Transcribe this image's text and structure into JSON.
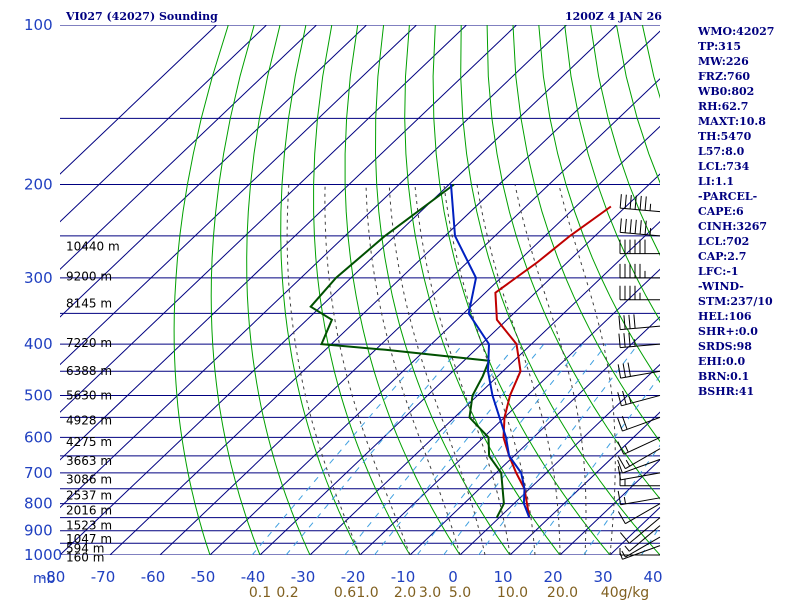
{
  "header": {
    "station": "VI027 (42027) Sounding",
    "time": "1200Z  4 JAN 26"
  },
  "indices": [
    "WMO:42027",
    "TP:315",
    "MW:226",
    "FRZ:760",
    "WB0:802",
    "RH:62.7",
    "MAXT:10.8",
    "TH:5470",
    "L57:8.0",
    "LCL:734",
    "LI:1.1",
    "-PARCEL-",
    "CAPE:6",
    "CINH:3267",
    "LCL:702",
    "CAP:2.7",
    "LFC:-1",
    "-WIND-",
    "STM:237/10",
    "HEL:106",
    "SHR+:0.0",
    "SRDS:98",
    "EHI:0.0",
    "BRN:0.1",
    "BSHR:41"
  ],
  "colors": {
    "isobar": "#000080",
    "isotherm": "#000080",
    "dry_adiabat": "#00a000",
    "moist_adiabat": "#404040",
    "mixing_ratio": "#40a0e0",
    "temperature": "#c00000",
    "dewpoint": "#005000",
    "parcel": "#0020c0",
    "wind": "#000000"
  },
  "chart_data": {
    "type": "line",
    "title": "VI027 (42027) Sounding",
    "ylabel": "mb",
    "y_scale": "log",
    "ylim": [
      1000,
      100
    ],
    "xlim": [
      -80,
      40
    ],
    "pressure_ticks": [
      100,
      200,
      300,
      400,
      500,
      600,
      700,
      800,
      900,
      1000
    ],
    "pressure_tick_labels": [
      "100",
      "200",
      "300",
      "400",
      "500",
      "600",
      "700",
      "800",
      "900",
      "1000"
    ],
    "temperature_ticks": [
      -80,
      -70,
      -60,
      -50,
      -40,
      -30,
      -20,
      -10,
      0,
      10,
      20,
      30,
      40
    ],
    "temperature_tick_labels": [
      "-80",
      "-70",
      "-60",
      "-50",
      "-40",
      "-30",
      "-20",
      "-10",
      "0",
      "10",
      "20",
      "30",
      "40"
    ],
    "mixing_ratio_labels": [
      {
        "text": "0.1",
        "temp": -40
      },
      {
        "text": "0.2",
        "temp": -34.5
      },
      {
        "text": "0.6",
        "temp": -23
      },
      {
        "text": "1.0",
        "temp": -18.5
      },
      {
        "text": "2.0",
        "temp": -11
      },
      {
        "text": "3.0",
        "temp": -6
      },
      {
        "text": "5.0",
        "temp": 0
      },
      {
        "text": "10.0",
        "temp": 10.5
      },
      {
        "text": "20.0",
        "temp": 20.5
      },
      {
        "text": "40g/kg",
        "temp": 33
      }
    ],
    "height_labels": [
      {
        "text": "10440 m",
        "p": 262
      },
      {
        "text": "9200 m",
        "p": 298
      },
      {
        "text": "8145 m",
        "p": 335
      },
      {
        "text": "7220 m",
        "p": 398
      },
      {
        "text": "6388 m",
        "p": 450
      },
      {
        "text": "5630 m",
        "p": 500
      },
      {
        "text": "4928 m",
        "p": 557
      },
      {
        "text": "4275 m",
        "p": 612
      },
      {
        "text": "3663 m",
        "p": 665
      },
      {
        "text": "3086 m",
        "p": 720
      },
      {
        "text": "2537 m",
        "p": 773
      },
      {
        "text": "2016 m",
        "p": 825
      },
      {
        "text": "1523 m",
        "p": 880
      },
      {
        "text": "1047 m",
        "p": 932
      },
      {
        "text": "594 m",
        "p": 972
      },
      {
        "text": "160 m",
        "p": 1012
      }
    ],
    "series": [
      {
        "name": "temperature",
        "points": [
          [
            850,
            6
          ],
          [
            750,
            -1
          ],
          [
            700,
            -6
          ],
          [
            650,
            -11
          ],
          [
            600,
            -16
          ],
          [
            550,
            -20
          ],
          [
            500,
            -23.5
          ],
          [
            450,
            -26.5
          ],
          [
            430,
            -29
          ],
          [
            400,
            -33
          ],
          [
            360,
            -42
          ],
          [
            320,
            -48
          ],
          [
            280,
            -46
          ],
          [
            250,
            -45
          ],
          [
            220,
            -43
          ]
        ]
      },
      {
        "name": "dewpoint",
        "points": [
          [
            850,
            -0.5
          ],
          [
            800,
            -2
          ],
          [
            700,
            -9
          ],
          [
            650,
            -15
          ],
          [
            600,
            -19
          ],
          [
            550,
            -27
          ],
          [
            500,
            -31
          ],
          [
            460,
            -33
          ],
          [
            430,
            -35
          ],
          [
            410,
            -58
          ],
          [
            400,
            -72
          ],
          [
            360,
            -75
          ],
          [
            340,
            -82
          ],
          [
            300,
            -83
          ],
          [
            250,
            -82
          ],
          [
            200,
            -79
          ]
        ]
      },
      {
        "name": "parcel",
        "points": [
          [
            850,
            6
          ],
          [
            800,
            2
          ],
          [
            750,
            -1
          ],
          [
            700,
            -5
          ],
          [
            650,
            -11
          ],
          [
            600,
            -15.5
          ],
          [
            550,
            -21
          ],
          [
            500,
            -27
          ],
          [
            450,
            -33
          ],
          [
            400,
            -38.5
          ],
          [
            350,
            -49
          ],
          [
            300,
            -55
          ],
          [
            250,
            -68
          ],
          [
            200,
            -79.6
          ]
        ]
      }
    ],
    "wind_barbs": [
      {
        "p": 1000,
        "dir": 270,
        "kt": 5
      },
      {
        "p": 960,
        "dir": 250,
        "kt": 5
      },
      {
        "p": 925,
        "dir": 240,
        "kt": 5
      },
      {
        "p": 880,
        "dir": 230,
        "kt": 5
      },
      {
        "p": 850,
        "dir": 230,
        "kt": 10
      },
      {
        "p": 800,
        "dir": 240,
        "kt": 10
      },
      {
        "p": 780,
        "dir": 260,
        "kt": 15
      },
      {
        "p": 740,
        "dir": 270,
        "kt": 15
      },
      {
        "p": 700,
        "dir": 260,
        "kt": 10
      },
      {
        "p": 660,
        "dir": 250,
        "kt": 10
      },
      {
        "p": 630,
        "dir": 240,
        "kt": 15
      },
      {
        "p": 600,
        "dir": 245,
        "kt": 15
      },
      {
        "p": 550,
        "dir": 250,
        "kt": 20
      },
      {
        "p": 500,
        "dir": 255,
        "kt": 25
      },
      {
        "p": 450,
        "dir": 260,
        "kt": 30
      },
      {
        "p": 400,
        "dir": 265,
        "kt": 35
      },
      {
        "p": 370,
        "dir": 265,
        "kt": 40
      },
      {
        "p": 330,
        "dir": 270,
        "kt": 45
      },
      {
        "p": 300,
        "dir": 270,
        "kt": 55
      },
      {
        "p": 270,
        "dir": 270,
        "kt": 60
      },
      {
        "p": 250,
        "dir": 275,
        "kt": 65
      },
      {
        "p": 225,
        "dir": 275,
        "kt": 65
      }
    ]
  }
}
